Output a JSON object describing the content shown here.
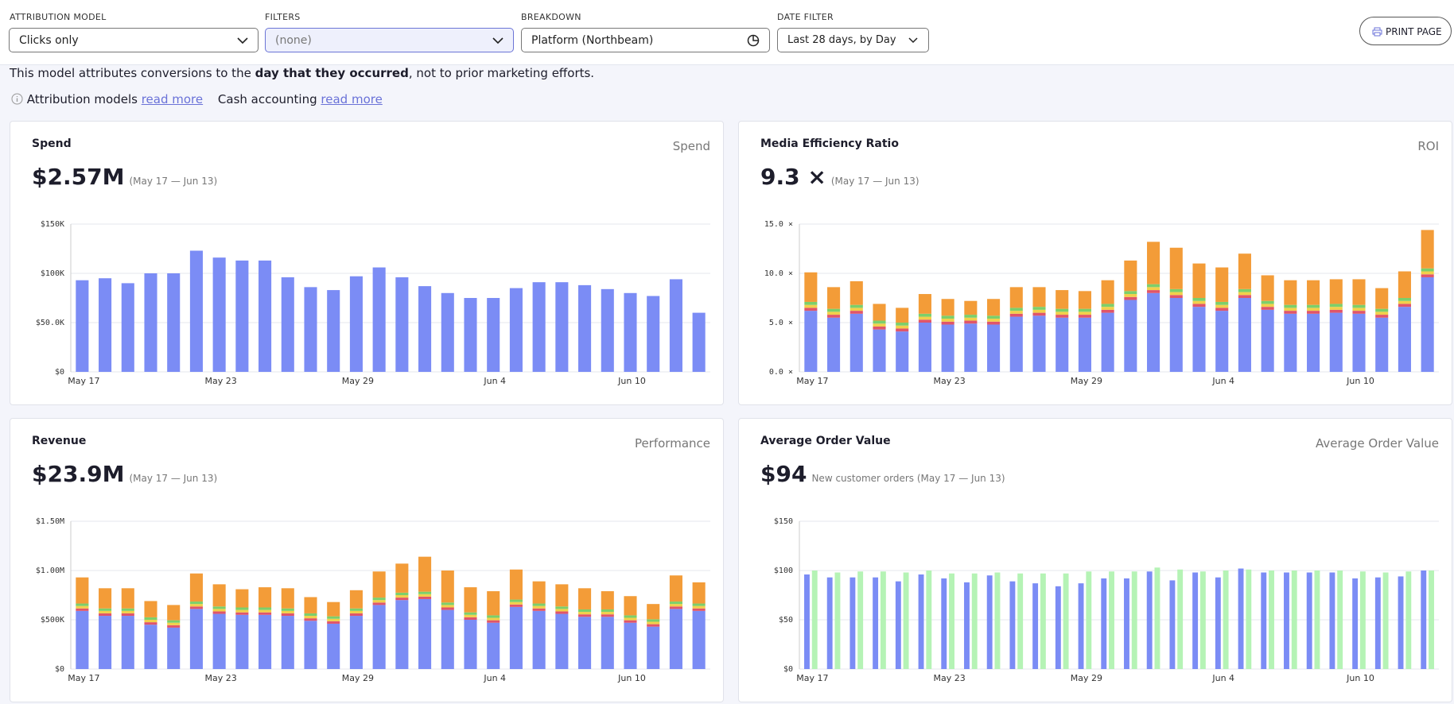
{
  "header": {
    "attribution_model": {
      "label": "ATTRIBUTION MODEL",
      "value": "Clicks only"
    },
    "filters": {
      "label": "FILTERS",
      "value": "(none)"
    },
    "breakdown": {
      "label": "BREAKDOWN",
      "value": "Platform (Northbeam)"
    },
    "date_filter": {
      "label": "DATE FILTER",
      "value": "Last 28 days, by Day"
    },
    "print": "PRINT PAGE"
  },
  "description": {
    "before": "This model attributes conversions to the ",
    "bold": "day that they occurred",
    "after": ", not to prior marketing efforts."
  },
  "links": [
    {
      "text": "Attribution models",
      "link": "read more"
    },
    {
      "text": "Cash accounting",
      "link": "read more"
    }
  ],
  "chart_data": [
    {
      "type": "bar",
      "title": "Spend",
      "metric_label": "Spend",
      "headline": "$2.57M",
      "period": "(May 17 — Jun 13)",
      "categories": [
        "May 17",
        null,
        null,
        null,
        null,
        null,
        "May 23",
        null,
        null,
        null,
        null,
        null,
        "May 29",
        null,
        null,
        null,
        null,
        null,
        "Jun 4",
        null,
        null,
        null,
        null,
        null,
        "Jun 10",
        null,
        null,
        null
      ],
      "values": [
        93000,
        95000,
        90000,
        100000,
        100000,
        123000,
        116000,
        113000,
        113000,
        96000,
        86000,
        83000,
        97000,
        106000,
        96000,
        87000,
        80000,
        75000,
        75000,
        85000,
        91000,
        91000,
        88000,
        84000,
        80000,
        77000,
        94000,
        60000
      ],
      "color": "#7b8cf5",
      "ylim": [
        0,
        150000
      ],
      "yticks": [
        {
          "value": 0,
          "label": "$0"
        },
        {
          "value": 50000,
          "label": "$50.0K"
        },
        {
          "value": 100000,
          "label": "$100K"
        },
        {
          "value": 150000,
          "label": "$150K"
        }
      ],
      "grid": true
    },
    {
      "type": "stacked_bar",
      "title": "Media Efficiency Ratio",
      "metric_label": "ROI",
      "headline": "9.3 ×",
      "period": "(May 17 — Jun 13)",
      "categories": [
        "May 17",
        null,
        null,
        null,
        null,
        null,
        "May 23",
        null,
        null,
        null,
        null,
        null,
        "May 29",
        null,
        null,
        null,
        null,
        null,
        "Jun 4",
        null,
        null,
        null,
        null,
        null,
        "Jun 10",
        null,
        null,
        null
      ],
      "series": [
        {
          "color": "#7b8cf5",
          "values": [
            6.2,
            5.5,
            5.9,
            4.3,
            4.1,
            5.0,
            4.8,
            4.9,
            4.8,
            5.6,
            5.7,
            5.5,
            5.5,
            6.0,
            7.3,
            8.0,
            7.5,
            6.6,
            6.2,
            7.5,
            6.3,
            5.9,
            5.9,
            6.0,
            5.9,
            5.5,
            6.6,
            9.6
          ]
        },
        {
          "color": "#e0556a",
          "values": [
            0.3,
            0.3,
            0.3,
            0.3,
            0.3,
            0.3,
            0.3,
            0.3,
            0.3,
            0.3,
            0.3,
            0.3,
            0.3,
            0.3,
            0.3,
            0.3,
            0.3,
            0.3,
            0.3,
            0.3,
            0.3,
            0.3,
            0.3,
            0.3,
            0.3,
            0.3,
            0.3,
            0.3
          ]
        },
        {
          "color": "#f2d04a",
          "values": [
            0.3,
            0.3,
            0.3,
            0.3,
            0.3,
            0.3,
            0.3,
            0.3,
            0.3,
            0.3,
            0.3,
            0.3,
            0.3,
            0.3,
            0.3,
            0.3,
            0.3,
            0.3,
            0.3,
            0.3,
            0.3,
            0.3,
            0.3,
            0.3,
            0.3,
            0.3,
            0.3,
            0.3
          ]
        },
        {
          "color": "#7ccf6b",
          "values": [
            0.3,
            0.3,
            0.3,
            0.3,
            0.3,
            0.3,
            0.3,
            0.3,
            0.3,
            0.3,
            0.3,
            0.3,
            0.3,
            0.3,
            0.3,
            0.3,
            0.3,
            0.3,
            0.3,
            0.3,
            0.3,
            0.3,
            0.3,
            0.3,
            0.3,
            0.3,
            0.3,
            0.3
          ]
        },
        {
          "color": "#f39c38",
          "values": [
            3.0,
            2.2,
            2.4,
            1.7,
            1.5,
            2.0,
            1.7,
            1.4,
            1.7,
            2.1,
            2.0,
            1.9,
            1.8,
            2.4,
            3.1,
            4.3,
            4.2,
            3.5,
            3.5,
            3.6,
            2.6,
            2.5,
            2.5,
            2.5,
            2.6,
            2.1,
            2.7,
            3.9
          ]
        }
      ],
      "ylim": [
        0,
        15
      ],
      "yticks": [
        {
          "value": 0,
          "label": "0.0 ×"
        },
        {
          "value": 5,
          "label": "5.0 ×"
        },
        {
          "value": 10,
          "label": "10.0 ×"
        },
        {
          "value": 15,
          "label": "15.0 ×"
        }
      ],
      "grid": true
    },
    {
      "type": "stacked_bar",
      "title": "Revenue",
      "metric_label": "Performance",
      "headline": "$23.9M",
      "period": "(May 17 — Jun 13)",
      "categories": [
        "May 17",
        null,
        null,
        null,
        null,
        null,
        "May 23",
        null,
        null,
        null,
        null,
        null,
        "May 29",
        null,
        null,
        null,
        null,
        null,
        "Jun 4",
        null,
        null,
        null,
        null,
        null,
        "Jun 10",
        null,
        null,
        null
      ],
      "series": [
        {
          "color": "#7b8cf5",
          "values": [
            590000,
            540000,
            540000,
            450000,
            420000,
            610000,
            560000,
            550000,
            550000,
            540000,
            490000,
            460000,
            540000,
            650000,
            700000,
            710000,
            600000,
            500000,
            470000,
            630000,
            590000,
            560000,
            530000,
            530000,
            470000,
            430000,
            610000,
            590000
          ]
        },
        {
          "color": "#e0556a",
          "values": [
            25000,
            25000,
            25000,
            25000,
            25000,
            25000,
            25000,
            25000,
            25000,
            25000,
            25000,
            25000,
            25000,
            25000,
            25000,
            25000,
            25000,
            25000,
            25000,
            25000,
            25000,
            25000,
            25000,
            25000,
            25000,
            25000,
            25000,
            25000
          ]
        },
        {
          "color": "#f2d04a",
          "values": [
            25000,
            25000,
            25000,
            25000,
            25000,
            25000,
            25000,
            25000,
            25000,
            25000,
            25000,
            25000,
            25000,
            25000,
            25000,
            25000,
            25000,
            25000,
            25000,
            25000,
            25000,
            25000,
            25000,
            25000,
            25000,
            25000,
            25000,
            25000
          ]
        },
        {
          "color": "#7ccf6b",
          "values": [
            25000,
            25000,
            25000,
            25000,
            25000,
            25000,
            25000,
            25000,
            25000,
            25000,
            25000,
            25000,
            25000,
            25000,
            25000,
            25000,
            25000,
            25000,
            25000,
            25000,
            25000,
            25000,
            25000,
            25000,
            25000,
            25000,
            25000,
            25000
          ]
        },
        {
          "color": "#f39c38",
          "values": [
            265000,
            205000,
            205000,
            165000,
            155000,
            285000,
            225000,
            185000,
            205000,
            205000,
            165000,
            145000,
            185000,
            265000,
            295000,
            355000,
            325000,
            255000,
            245000,
            305000,
            225000,
            225000,
            215000,
            185000,
            195000,
            155000,
            265000,
            215000
          ]
        }
      ],
      "ylim": [
        0,
        1500000
      ],
      "yticks": [
        {
          "value": 0,
          "label": "$0"
        },
        {
          "value": 500000,
          "label": "$500K"
        },
        {
          "value": 1000000,
          "label": "$1.00M"
        },
        {
          "value": 1500000,
          "label": "$1.50M"
        }
      ],
      "grid": true
    },
    {
      "type": "grouped_bar",
      "title": "Average Order Value",
      "metric_label": "Average Order Value",
      "headline": "$94",
      "period": "New customer orders (May 17 — Jun 13)",
      "categories": [
        "May 17",
        null,
        null,
        null,
        null,
        null,
        "May 23",
        null,
        null,
        null,
        null,
        null,
        "May 29",
        null,
        null,
        null,
        null,
        null,
        "Jun 4",
        null,
        null,
        null,
        null,
        null,
        "Jun 10",
        null,
        null,
        null
      ],
      "series": [
        {
          "color": "#7b8cf5",
          "values": [
            96,
            93,
            93,
            93,
            89,
            96,
            92,
            88,
            95,
            89,
            87,
            84,
            87,
            92,
            92,
            99,
            90,
            98,
            93,
            102,
            98,
            98,
            98,
            98,
            92,
            93,
            94,
            100
          ]
        },
        {
          "color": "#b5f3b5",
          "values": [
            100,
            98,
            99,
            99,
            98,
            100,
            97,
            97,
            98,
            97,
            97,
            97,
            99,
            99,
            99,
            103,
            101,
            99,
            100,
            101,
            100,
            100,
            100,
            100,
            99,
            98,
            99,
            100
          ]
        }
      ],
      "ylim": [
        0,
        150
      ],
      "yticks": [
        {
          "value": 0,
          "label": "$0"
        },
        {
          "value": 50,
          "label": "$50"
        },
        {
          "value": 100,
          "label": "$100"
        },
        {
          "value": 150,
          "label": "$150"
        }
      ],
      "grid": true
    }
  ]
}
